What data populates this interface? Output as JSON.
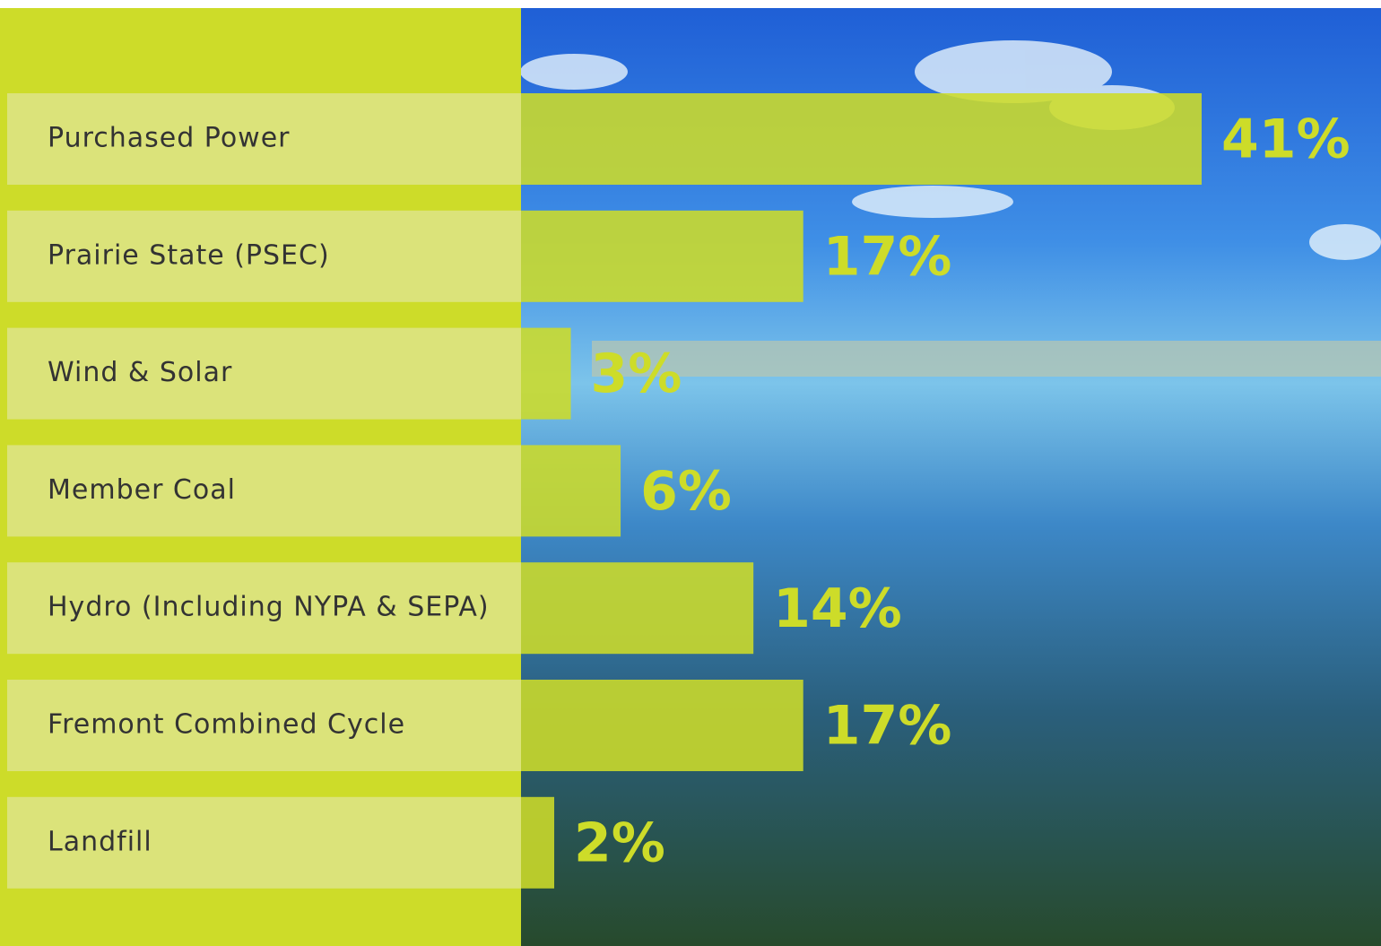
{
  "chart_data": {
    "type": "bar",
    "categories": [
      "Purchased Power",
      "Prairie State (PSEC)",
      "Wind & Solar",
      "Member Coal",
      "Hydro (Including NYPA & SEPA)",
      "Fremont Combined Cycle",
      "Landfill"
    ],
    "values": [
      41,
      17,
      3,
      6,
      14,
      17,
      2
    ],
    "value_labels": [
      "41%",
      "17%",
      "3%",
      "6%",
      "14%",
      "17%",
      "2%"
    ],
    "color": "#cddc29"
  }
}
